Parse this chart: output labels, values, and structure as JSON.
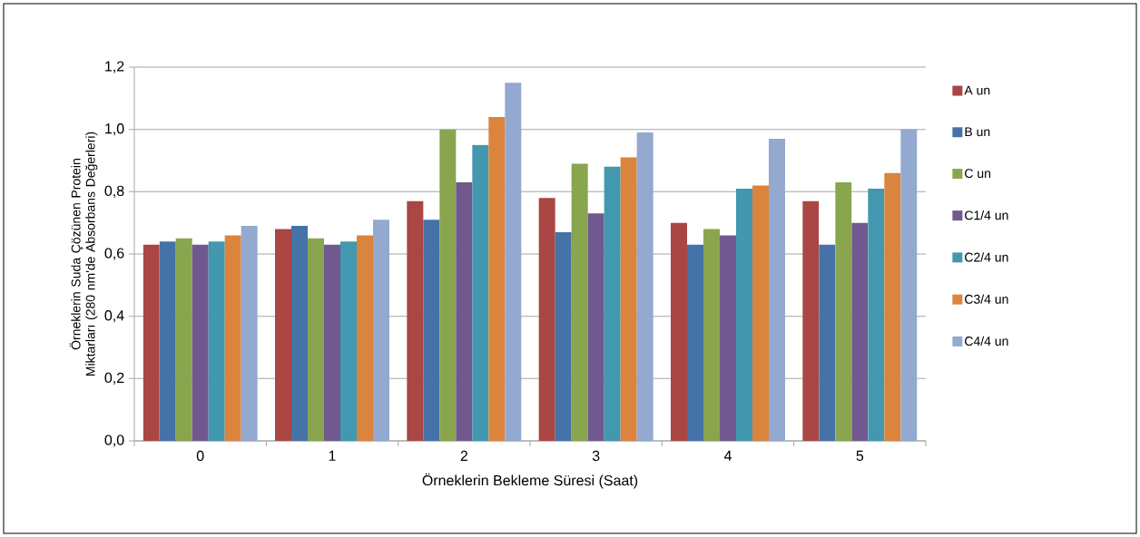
{
  "chart_data": {
    "type": "bar",
    "xlabel": "Örneklerin Bekleme Süresi (Saat)",
    "ylabel": "Örneklerin Suda Çözünen Protein Miktarları (280 nm'de Absorbans Değerleri)",
    "categories": [
      "0",
      "1",
      "2",
      "3",
      "4",
      "5"
    ],
    "series": [
      {
        "name": "A un",
        "color": "#aa4644",
        "values": [
          0.63,
          0.68,
          0.77,
          0.78,
          0.7,
          0.77
        ]
      },
      {
        "name": "B un",
        "color": "#4572a7",
        "values": [
          0.64,
          0.69,
          0.71,
          0.67,
          0.63,
          0.63
        ]
      },
      {
        "name": "C un",
        "color": "#89a54e",
        "values": [
          0.65,
          0.65,
          1.0,
          0.89,
          0.68,
          0.83
        ]
      },
      {
        "name": "C1/4 un",
        "color": "#71588f",
        "values": [
          0.63,
          0.63,
          0.83,
          0.73,
          0.66,
          0.7
        ]
      },
      {
        "name": "C2/4 un",
        "color": "#4198af",
        "values": [
          0.64,
          0.64,
          0.95,
          0.88,
          0.81,
          0.81
        ]
      },
      {
        "name": "C3/4 un",
        "color": "#db843d",
        "values": [
          0.66,
          0.66,
          1.04,
          0.91,
          0.82,
          0.86
        ]
      },
      {
        "name": "C4/4 un",
        "color": "#93a9cf",
        "values": [
          0.69,
          0.71,
          1.15,
          0.99,
          0.97,
          1.0
        ]
      }
    ],
    "ylim": [
      0,
      1.2
    ],
    "yticks": [
      {
        "value": 0,
        "label": "0,0"
      },
      {
        "value": 0.2,
        "label": "0,2"
      },
      {
        "value": 0.4,
        "label": "0,4"
      },
      {
        "value": 0.6,
        "label": "0,6"
      },
      {
        "value": 0.8,
        "label": "0,8"
      },
      {
        "value": 1.0,
        "label": "1,0"
      },
      {
        "value": 1.2,
        "label": "1,2"
      }
    ],
    "grid": "y",
    "legend": "right"
  }
}
